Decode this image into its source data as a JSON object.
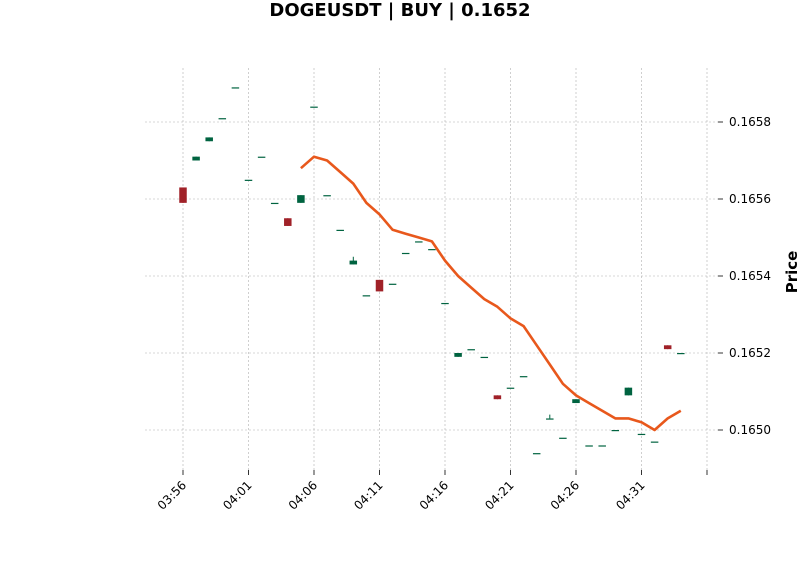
{
  "chart_data": {
    "type": "candlestick",
    "title": "DOGEUSDT | BUY | 0.1652",
    "xlabel": "",
    "ylabel": "Price",
    "ylim": [
      0.1649,
      0.16593
    ],
    "y_ticks": [
      "0.1650",
      "0.1652",
      "0.1654",
      "0.1656",
      "0.1658"
    ],
    "x_tick_labels": [
      "03:56",
      "04:01",
      "04:06",
      "04:11",
      "04:16",
      "04:21",
      "04:26",
      "04:31"
    ],
    "grid": true,
    "colors": {
      "up": "#006340",
      "down": "#A02128",
      "ma_line": "#E8581C",
      "grid": "#b0b0b0"
    },
    "candles": [
      {
        "time": "03:56",
        "open": 0.16563,
        "high": 0.16563,
        "low": 0.16559,
        "close": 0.16559
      },
      {
        "time": "03:57",
        "open": 0.1657,
        "high": 0.16571,
        "low": 0.1657,
        "close": 0.16571
      },
      {
        "time": "03:58",
        "open": 0.16575,
        "high": 0.16576,
        "low": 0.16575,
        "close": 0.16576
      },
      {
        "time": "03:59",
        "open": 0.16581,
        "high": 0.16581,
        "low": 0.16581,
        "close": 0.16581
      },
      {
        "time": "04:00",
        "open": 0.16589,
        "high": 0.16589,
        "low": 0.16589,
        "close": 0.16589
      },
      {
        "time": "04:01",
        "open": 0.16565,
        "high": 0.16565,
        "low": 0.16565,
        "close": 0.16565
      },
      {
        "time": "04:02",
        "open": 0.16571,
        "high": 0.16571,
        "low": 0.16571,
        "close": 0.16571
      },
      {
        "time": "04:03",
        "open": 0.16559,
        "high": 0.16559,
        "low": 0.16559,
        "close": 0.16559
      },
      {
        "time": "04:04",
        "open": 0.16555,
        "high": 0.16555,
        "low": 0.16553,
        "close": 0.16553
      },
      {
        "time": "04:05",
        "open": 0.16559,
        "high": 0.16561,
        "low": 0.16559,
        "close": 0.16561
      },
      {
        "time": "04:06",
        "open": 0.16584,
        "high": 0.16584,
        "low": 0.16584,
        "close": 0.16584
      },
      {
        "time": "04:07",
        "open": 0.16561,
        "high": 0.16561,
        "low": 0.16561,
        "close": 0.16561
      },
      {
        "time": "04:08",
        "open": 0.16552,
        "high": 0.16552,
        "low": 0.16552,
        "close": 0.16552
      },
      {
        "time": "04:09",
        "open": 0.16543,
        "high": 0.16545,
        "low": 0.16543,
        "close": 0.16544
      },
      {
        "time": "04:10",
        "open": 0.16535,
        "high": 0.16535,
        "low": 0.16535,
        "close": 0.16535
      },
      {
        "time": "04:11",
        "open": 0.16539,
        "high": 0.16539,
        "low": 0.16536,
        "close": 0.16536
      },
      {
        "time": "04:12",
        "open": 0.16538,
        "high": 0.16538,
        "low": 0.16538,
        "close": 0.16538
      },
      {
        "time": "04:13",
        "open": 0.16546,
        "high": 0.16546,
        "low": 0.16546,
        "close": 0.16546
      },
      {
        "time": "04:14",
        "open": 0.16549,
        "high": 0.16549,
        "low": 0.16549,
        "close": 0.16549
      },
      {
        "time": "04:15",
        "open": 0.16547,
        "high": 0.16547,
        "low": 0.16547,
        "close": 0.16547
      },
      {
        "time": "04:16",
        "open": 0.16533,
        "high": 0.16533,
        "low": 0.16533,
        "close": 0.16533
      },
      {
        "time": "04:17",
        "open": 0.16519,
        "high": 0.1652,
        "low": 0.16519,
        "close": 0.1652
      },
      {
        "time": "04:18",
        "open": 0.16521,
        "high": 0.16521,
        "low": 0.16521,
        "close": 0.16521
      },
      {
        "time": "04:19",
        "open": 0.16519,
        "high": 0.16519,
        "low": 0.16519,
        "close": 0.16519
      },
      {
        "time": "04:20",
        "open": 0.16509,
        "high": 0.16509,
        "low": 0.16508,
        "close": 0.16508
      },
      {
        "time": "04:21",
        "open": 0.16511,
        "high": 0.16511,
        "low": 0.16511,
        "close": 0.16511
      },
      {
        "time": "04:22",
        "open": 0.16514,
        "high": 0.16514,
        "low": 0.16514,
        "close": 0.16514
      },
      {
        "time": "04:23",
        "open": 0.16494,
        "high": 0.16494,
        "low": 0.16494,
        "close": 0.16494
      },
      {
        "time": "04:24",
        "open": 0.16503,
        "high": 0.16504,
        "low": 0.16503,
        "close": 0.16503
      },
      {
        "time": "04:25",
        "open": 0.16498,
        "high": 0.16498,
        "low": 0.16498,
        "close": 0.16498
      },
      {
        "time": "04:26",
        "open": 0.16507,
        "high": 0.16508,
        "low": 0.16507,
        "close": 0.16508
      },
      {
        "time": "04:27",
        "open": 0.16496,
        "high": 0.16496,
        "low": 0.16496,
        "close": 0.16496
      },
      {
        "time": "04:28",
        "open": 0.16496,
        "high": 0.16496,
        "low": 0.16496,
        "close": 0.16496
      },
      {
        "time": "04:29",
        "open": 0.165,
        "high": 0.165,
        "low": 0.165,
        "close": 0.165
      },
      {
        "time": "04:30",
        "open": 0.16509,
        "high": 0.16511,
        "low": 0.16509,
        "close": 0.16511
      },
      {
        "time": "04:31",
        "open": 0.16499,
        "high": 0.16499,
        "low": 0.16499,
        "close": 0.16499
      },
      {
        "time": "04:32",
        "open": 0.16497,
        "high": 0.16497,
        "low": 0.16497,
        "close": 0.16497
      },
      {
        "time": "04:33",
        "open": 0.16522,
        "high": 0.16522,
        "low": 0.16521,
        "close": 0.16521
      },
      {
        "time": "04:34",
        "open": 0.1652,
        "high": 0.1652,
        "low": 0.1652,
        "close": 0.1652
      }
    ],
    "ma_line": {
      "x": [
        "04:05",
        "04:06",
        "04:07",
        "04:08",
        "04:09",
        "04:10",
        "04:11",
        "04:12",
        "04:13",
        "04:14",
        "04:15",
        "04:16",
        "04:17",
        "04:18",
        "04:19",
        "04:20",
        "04:21",
        "04:22",
        "04:23",
        "04:24",
        "04:25",
        "04:26",
        "04:27",
        "04:28",
        "04:29",
        "04:30",
        "04:31",
        "04:32",
        "04:33",
        "04:34"
      ],
      "y": [
        0.16568,
        0.16571,
        0.1657,
        0.16567,
        0.16564,
        0.16559,
        0.16556,
        0.16552,
        0.16551,
        0.1655,
        0.16549,
        0.16544,
        0.1654,
        0.16537,
        0.16534,
        0.16532,
        0.16529,
        0.16527,
        0.16522,
        0.16517,
        0.16512,
        0.16509,
        0.16507,
        0.16505,
        0.16503,
        0.16503,
        0.16502,
        0.165,
        0.16503,
        0.16505
      ]
    }
  }
}
